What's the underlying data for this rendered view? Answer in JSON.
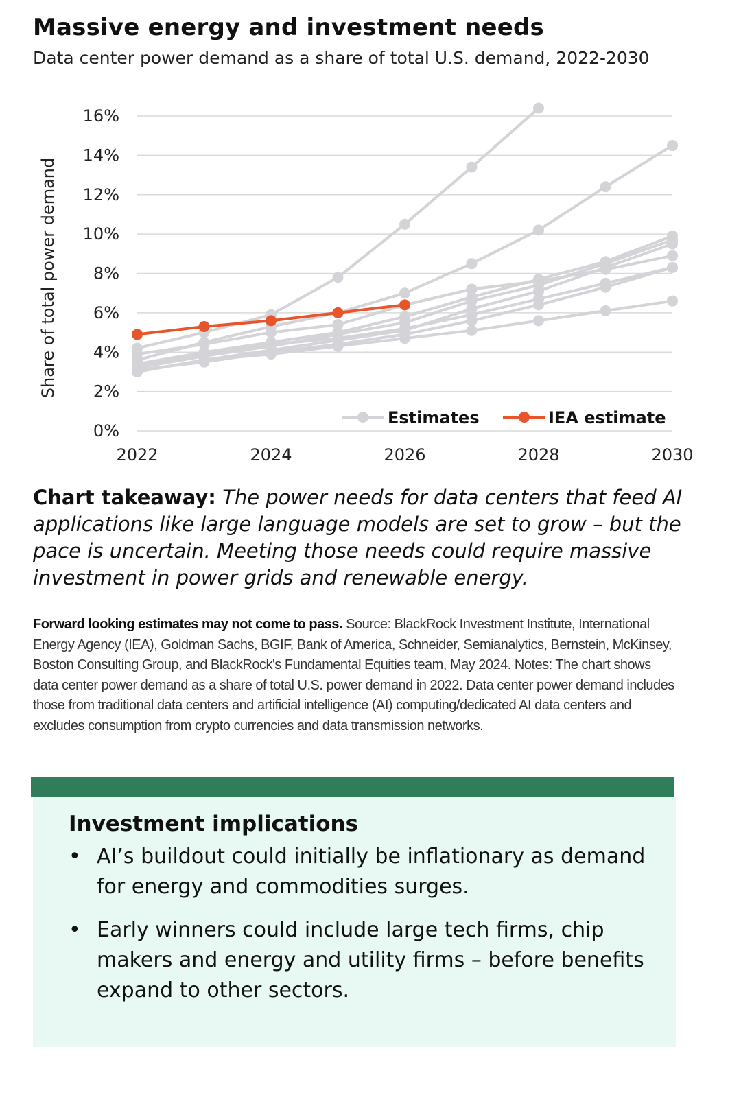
{
  "header": {
    "title": "Massive energy and investment needs",
    "subtitle": "Data center power demand as a share of total U.S. demand, 2022-2030"
  },
  "chart_data": {
    "type": "line",
    "title": "Massive energy and investment needs",
    "subtitle": "Data center power demand as a share of total U.S. demand, 2022-2030",
    "xlabel": "",
    "ylabel": "Share of total power demand",
    "xlim": [
      2022,
      2030
    ],
    "ylim": [
      0,
      16
    ],
    "x_ticks": [
      "2022",
      "2024",
      "2026",
      "2028",
      "2030"
    ],
    "y_ticks": [
      "0%",
      "2%",
      "4%",
      "6%",
      "8%",
      "10%",
      "12%",
      "14%",
      "16%"
    ],
    "grid": true,
    "legend": {
      "placement": "bottom-right",
      "entries": [
        "Estimates",
        "IEA estimate"
      ]
    },
    "colors": {
      "estimates": "#d3d3d8",
      "iea": "#e8552a",
      "grid": "#d9d9d9"
    },
    "series": [
      {
        "name": "Estimates",
        "x": [
          2022,
          2023,
          2024,
          2025,
          2026,
          2027,
          2028
        ],
        "y": [
          4.2,
          5.0,
          5.9,
          7.8,
          10.5,
          13.4,
          16.4
        ]
      },
      {
        "name": "Estimates",
        "x": [
          2022,
          2023,
          2024,
          2025,
          2026,
          2027,
          2028,
          2029,
          2030
        ],
        "y": [
          3.6,
          4.5,
          5.3,
          6.0,
          7.0,
          8.5,
          10.2,
          12.4,
          14.5
        ]
      },
      {
        "name": "Estimates",
        "x": [
          2022,
          2023,
          2024,
          2025,
          2026,
          2027,
          2028,
          2029,
          2030
        ],
        "y": [
          3.4,
          4.0,
          4.5,
          5.0,
          5.8,
          6.8,
          7.7,
          8.6,
          9.9
        ]
      },
      {
        "name": "Estimates",
        "x": [
          2022,
          2023,
          2024,
          2025,
          2026,
          2027,
          2028,
          2029,
          2030
        ],
        "y": [
          3.2,
          3.8,
          4.3,
          4.9,
          5.5,
          6.6,
          7.4,
          8.5,
          9.7
        ]
      },
      {
        "name": "Estimates",
        "x": [
          2022,
          2023,
          2024,
          2025,
          2026,
          2027,
          2028,
          2029,
          2030
        ],
        "y": [
          3.9,
          4.4,
          5.0,
          5.4,
          6.4,
          7.2,
          7.6,
          8.2,
          8.9
        ]
      },
      {
        "name": "Estimates",
        "x": [
          2022,
          2023,
          2024,
          2025,
          2026,
          2027,
          2028,
          2029,
          2030
        ],
        "y": [
          3.0,
          3.6,
          4.1,
          4.6,
          5.1,
          6.2,
          7.1,
          8.3,
          9.5
        ]
      },
      {
        "name": "Estimates",
        "x": [
          2022,
          2023,
          2024,
          2025,
          2026,
          2027,
          2028,
          2029,
          2030
        ],
        "y": [
          3.3,
          3.9,
          4.4,
          4.7,
          5.2,
          5.9,
          6.7,
          7.5,
          8.3
        ]
      },
      {
        "name": "Estimates",
        "x": [
          2022,
          2023,
          2024,
          2025,
          2026,
          2027,
          2028,
          2029,
          2030
        ],
        "y": [
          3.1,
          3.5,
          4.0,
          4.4,
          4.9,
          5.6,
          6.4,
          7.3,
          8.3
        ]
      },
      {
        "name": "Estimates",
        "x": [
          2022,
          2023,
          2024,
          2025,
          2026,
          2027,
          2028,
          2029,
          2030
        ],
        "y": [
          3.0,
          3.6,
          3.9,
          4.3,
          4.7,
          5.1,
          5.6,
          6.1,
          6.6
        ]
      },
      {
        "name": "IEA estimate",
        "x": [
          2022,
          2023,
          2024,
          2025,
          2026
        ],
        "y": [
          4.9,
          5.3,
          5.6,
          6.0,
          6.4
        ]
      }
    ]
  },
  "takeaway": {
    "lead": "Chart takeaway:",
    "body": "The power needs for data centers that feed AI applications like large language models are set to grow – but the pace is uncertain. Meeting those needs could require massive investment in power grids and renewable energy."
  },
  "source": {
    "lead": "Forward looking estimates may not come to pass.",
    "body": "Source: BlackRock Investment Institute, International Energy Agency (IEA), Goldman Sachs, BGIF, Bank of America, Schneider, Semianalytics, Bernstein, McKinsey, Boston Consulting Group, and BlackRock's Fundamental Equities team, May 2024. Notes: The chart shows data center power demand as a share of total U.S. power demand in 2022. Data center power demand includes those from traditional data centers and artificial intelligence (AI) computing/dedicated AI data centers and excludes consumption from crypto currencies and data transmission networks."
  },
  "implications": {
    "title": "Investment implications",
    "bullet_glyph": "•",
    "items": [
      "AI’s buildout could initially be inflationary as demand for energy and commodities surges.",
      "Early winners could include large tech firms, chip makers and energy and utility firms – before benefits expand to other sectors."
    ]
  }
}
